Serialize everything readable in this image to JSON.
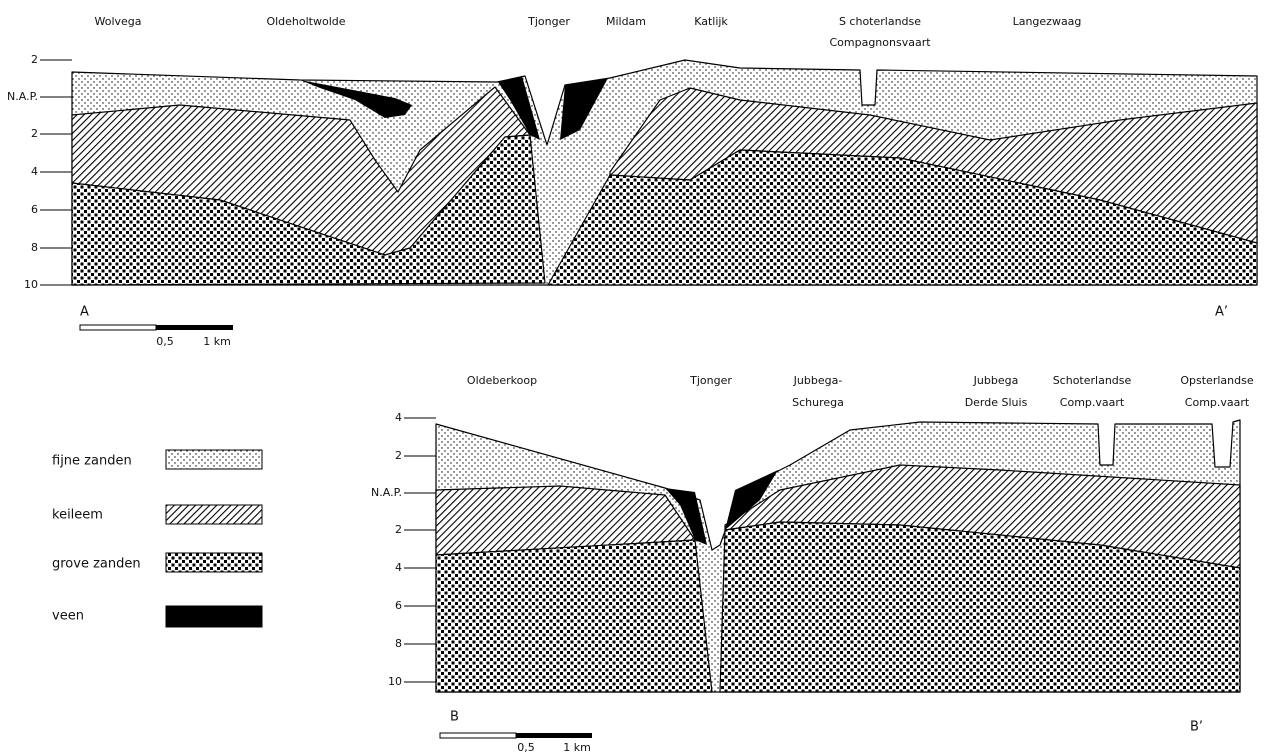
{
  "section_a": {
    "places": [
      [
        "Wolvega"
      ],
      [
        "Oldeholtwolde"
      ],
      [
        "Tjonger"
      ],
      [
        "Mildam"
      ],
      [
        "Katlijk"
      ],
      [
        "S choterlandse",
        "Compagnonsvaart"
      ],
      [
        "Langezwaag"
      ]
    ],
    "depth_labels": [
      "2",
      "N.A.P.",
      "2",
      "4",
      "6",
      "8",
      "10"
    ],
    "start": "A",
    "end": "A’",
    "scale": [
      "0,5",
      "1 km"
    ]
  },
  "section_b": {
    "places": [
      [
        "Oldeberkoop"
      ],
      [
        "Tjonger"
      ],
      [
        "Jubbega-",
        "Schurega"
      ],
      [
        "Jubbega",
        "Derde Sluis"
      ],
      [
        "Schoterlandse",
        "Comp.vaart"
      ],
      [
        "Opsterlandse",
        "Comp.vaart"
      ]
    ],
    "depth_labels": [
      "4",
      "2",
      "N.A.P.",
      "2",
      "4",
      "6",
      "8",
      "10"
    ],
    "start": "B",
    "end": "B’",
    "scale": [
      "0,5",
      "1 km"
    ]
  },
  "legend": [
    "fijne zanden",
    "keileem",
    "grove zanden",
    "veen"
  ]
}
